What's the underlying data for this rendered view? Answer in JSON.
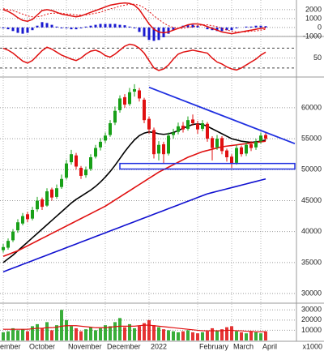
{
  "chart_data": [
    {
      "type": "macd",
      "ylim": [
        -1100,
        2900
      ],
      "yticks": [
        2000,
        1000,
        0,
        -1000
      ],
      "line": {
        "color": "#e01010",
        "values": [
          2000,
          1800,
          1500,
          1100,
          800,
          700,
          900,
          1400,
          1900,
          2000,
          1900,
          1700,
          1500,
          1400,
          1300,
          1200,
          1300,
          1500,
          1700,
          1900,
          2100,
          2300,
          2500,
          2600,
          2700,
          2750,
          2700,
          2500,
          2000,
          1200,
          400,
          -200,
          -500,
          -600,
          -500,
          -300,
          -100,
          100,
          300,
          400,
          400,
          300,
          100,
          -100,
          -300,
          -500,
          -600,
          -700,
          -600,
          -500,
          -400,
          -300,
          -200,
          -100,
          -50
        ]
      },
      "signal": {
        "color": "#e01010",
        "values": [
          2100,
          2000,
          1900,
          1700,
          1500,
          1300,
          1200,
          1200,
          1300,
          1500,
          1600,
          1600,
          1600,
          1500,
          1500,
          1400,
          1400,
          1400,
          1500,
          1600,
          1700,
          1900,
          2100,
          2200,
          2400,
          2500,
          2600,
          2600,
          2500,
          2200,
          1800,
          1300,
          900,
          500,
          200,
          0,
          -100,
          -100,
          0,
          100,
          200,
          300,
          300,
          200,
          100,
          -100,
          -300,
          -400,
          -500,
          -500,
          -500,
          -400,
          -400,
          -300,
          -200
        ]
      },
      "histogram": {
        "color": "#1a1ad0",
        "values": [
          -100,
          -200,
          -400,
          -600,
          -700,
          -600,
          -300,
          200,
          600,
          500,
          300,
          100,
          -100,
          -100,
          -200,
          -200,
          -100,
          100,
          200,
          300,
          400,
          400,
          400,
          400,
          300,
          250,
          100,
          -100,
          -500,
          -1000,
          -1400,
          -1500,
          -1400,
          -1100,
          -700,
          -300,
          0,
          200,
          300,
          300,
          200,
          0,
          -200,
          -300,
          -400,
          -400,
          -300,
          -300,
          -100,
          0,
          100,
          100,
          200,
          200,
          150
        ]
      }
    },
    {
      "type": "line",
      "ylim": [
        15,
        92
      ],
      "yticks": [
        50
      ],
      "levels": [
        70,
        30
      ],
      "color": "#e01010",
      "values": [
        70,
        66,
        60,
        52,
        44,
        40,
        45,
        55,
        65,
        72,
        68,
        62,
        56,
        52,
        48,
        45,
        50,
        58,
        64,
        66,
        62,
        55,
        52,
        58,
        66,
        74,
        78,
        76,
        70,
        60,
        45,
        30,
        25,
        28,
        36,
        48,
        58,
        62,
        64,
        66,
        64,
        62,
        60,
        50,
        42,
        38,
        32,
        28,
        26,
        30,
        36,
        42,
        48,
        56,
        62
      ]
    },
    {
      "type": "candlestick",
      "ylim": [
        28700,
        64700
      ],
      "yticks": [
        30000,
        35000,
        40000,
        45000,
        50000,
        55000,
        60000
      ],
      "up_color": "#18a018",
      "down_color": "#e01010",
      "ohlc": [
        [
          37000,
          38000,
          36600,
          37500
        ],
        [
          37400,
          38900,
          37100,
          38500
        ],
        [
          38600,
          40400,
          38300,
          40000
        ],
        [
          40200,
          42000,
          39800,
          41500
        ],
        [
          41300,
          43000,
          41000,
          42500
        ],
        [
          42800,
          43200,
          41500,
          42000
        ],
        [
          42100,
          44000,
          41800,
          43500
        ],
        [
          43600,
          45600,
          43200,
          45000
        ],
        [
          45200,
          45500,
          43500,
          44000
        ],
        [
          44200,
          47000,
          44000,
          46500
        ],
        [
          46800,
          47100,
          45000,
          45500
        ],
        [
          45600,
          47600,
          45300,
          47000
        ],
        [
          47200,
          49200,
          46900,
          48500
        ],
        [
          48700,
          51600,
          48400,
          51000
        ],
        [
          51200,
          53200,
          50800,
          52500
        ],
        [
          52300,
          52700,
          50000,
          50500
        ],
        [
          50300,
          50600,
          48500,
          49000
        ],
        [
          49100,
          50500,
          48700,
          50000
        ],
        [
          50100,
          52500,
          49800,
          52000
        ],
        [
          52100,
          54000,
          51800,
          53500
        ],
        [
          53600,
          55100,
          53100,
          54500
        ],
        [
          54700,
          56000,
          54300,
          55500
        ],
        [
          55600,
          58000,
          55300,
          57500
        ],
        [
          57600,
          60200,
          57200,
          59500
        ],
        [
          59600,
          62000,
          59200,
          61500
        ],
        [
          61700,
          62200,
          60000,
          60500
        ],
        [
          60600,
          63200,
          60300,
          62500
        ],
        [
          62600,
          63800,
          61800,
          63000
        ],
        [
          62800,
          63200,
          61000,
          61500
        ],
        [
          61300,
          61600,
          57500,
          58000
        ],
        [
          58200,
          58600,
          55800,
          56500
        ],
        [
          56400,
          56800,
          51800,
          52500
        ],
        [
          52600,
          54600,
          51500,
          54000
        ],
        [
          54100,
          54500,
          51000,
          52500
        ],
        [
          52600,
          56000,
          52300,
          55500
        ],
        [
          55600,
          56600,
          55000,
          56000
        ],
        [
          56100,
          57600,
          55700,
          57000
        ],
        [
          57100,
          57700,
          56000,
          56500
        ],
        [
          56600,
          58600,
          56300,
          58000
        ],
        [
          58100,
          58900,
          57100,
          57500
        ],
        [
          57400,
          57900,
          55800,
          56500
        ],
        [
          56600,
          58000,
          56200,
          57500
        ],
        [
          57400,
          57700,
          54500,
          55000
        ],
        [
          55100,
          55400,
          51500,
          53500
        ],
        [
          53600,
          55600,
          53200,
          55000
        ],
        [
          55100,
          55400,
          52500,
          53000
        ],
        [
          53100,
          53400,
          51300,
          52000
        ],
        [
          52100,
          52500,
          50300,
          51000
        ],
        [
          51100,
          54000,
          50800,
          53500
        ],
        [
          53600,
          53900,
          52100,
          52500
        ],
        [
          52600,
          54500,
          52200,
          54000
        ],
        [
          54100,
          54600,
          53000,
          53500
        ],
        [
          53600,
          55000,
          53200,
          54500
        ],
        [
          54600,
          56000,
          54200,
          55500
        ],
        [
          55600,
          56000,
          54700,
          55000
        ]
      ],
      "moving_averages": [
        {
          "color": "#000000",
          "values": [
            35000,
            35600,
            36200,
            36900,
            37600,
            38300,
            39000,
            39700,
            40400,
            41100,
            41800,
            42500,
            43200,
            43900,
            44600,
            45200,
            45700,
            46200,
            46700,
            47300,
            48000,
            48800,
            49700,
            50700,
            51800,
            52900,
            53900,
            54800,
            55500,
            55900,
            56100,
            56000,
            55800,
            55700,
            55800,
            56000,
            56300,
            56700,
            57000,
            57300,
            57400,
            57300,
            57000,
            56600,
            56200,
            55800,
            55400,
            55000,
            54800,
            54600,
            54500,
            54400,
            54500,
            54600,
            54800
          ]
        },
        {
          "color": "#e01010",
          "values": [
            36000,
            36300,
            36600,
            36900,
            37300,
            37700,
            38100,
            38500,
            38900,
            39300,
            39700,
            40100,
            40500,
            40900,
            41300,
            41700,
            42100,
            42500,
            42900,
            43300,
            43700,
            44100,
            44600,
            45100,
            45600,
            46100,
            46600,
            47100,
            47600,
            48100,
            48600,
            49100,
            49600,
            50000,
            50400,
            50800,
            51200,
            51600,
            52000,
            52300,
            52600,
            52900,
            53100,
            53300,
            53500,
            53700,
            53800,
            53900,
            54000,
            54100,
            54200,
            54300,
            54400,
            54500,
            54600
          ]
        },
        {
          "color": "#1010d0",
          "values": [
            33500,
            33800,
            34100,
            34400,
            34700,
            35000,
            35300,
            35600,
            35900,
            36200,
            36500,
            36800,
            37100,
            37400,
            37700,
            38000,
            38300,
            38600,
            38900,
            39200,
            39500,
            39800,
            40100,
            40400,
            40700,
            41000,
            41300,
            41600,
            41900,
            42200,
            42500,
            42800,
            43100,
            43400,
            43700,
            44000,
            44300,
            44600,
            44900,
            45200,
            45500,
            45800,
            46100,
            46300,
            46500,
            46700,
            46900,
            47100,
            47300,
            47500,
            47700,
            47900,
            48100,
            48300,
            48500
          ]
        }
      ],
      "trendline": {
        "color": "#2030e0",
        "x": [
          30,
          60
        ],
        "y": [
          63300,
          54200
        ]
      },
      "support_zone": {
        "color": "#2030e0",
        "from": 24,
        "to": 60,
        "low": 50100,
        "high": 51000
      }
    },
    {
      "type": "bar",
      "ylim": [
        0,
        35000
      ],
      "yticks": [
        10000,
        20000,
        30000
      ],
      "unit_label": "x1000",
      "up_color": "#18a018",
      "down_color": "#e01010",
      "ma_color": "#e01010",
      "categories": [
        "ember",
        null,
        null,
        null,
        null,
        "October",
        null,
        null,
        null,
        null,
        null,
        null,
        null,
        "November",
        null,
        null,
        null,
        null,
        null,
        null,
        null,
        "December",
        null,
        null,
        null,
        null,
        null,
        null,
        null,
        null,
        "2022",
        null,
        null,
        null,
        null,
        null,
        null,
        null,
        null,
        null,
        "February",
        null,
        null,
        null,
        null,
        null,
        null,
        "March",
        null,
        null,
        null,
        null,
        null,
        "April",
        null
      ],
      "values": [
        8000,
        9000,
        12000,
        10000,
        11000,
        9000,
        14000,
        16000,
        12000,
        18000,
        10000,
        15000,
        30000,
        20000,
        14000,
        12000,
        9000,
        11000,
        13000,
        10000,
        12000,
        15000,
        14000,
        18000,
        22000,
        13000,
        16000,
        12000,
        14000,
        17000,
        20000,
        15000,
        13000,
        11000,
        10000,
        9000,
        8000,
        9000,
        10000,
        8000,
        7000,
        8000,
        9000,
        12000,
        10000,
        11000,
        13000,
        14000,
        9000,
        8000,
        7000,
        9000,
        8000,
        7000,
        9000
      ],
      "ma": [
        11000,
        11000,
        11000,
        11000,
        11000,
        11000,
        11500,
        12000,
        12000,
        12500,
        12500,
        13000,
        14000,
        14500,
        14500,
        14500,
        14000,
        13500,
        13000,
        12500,
        12500,
        12500,
        13000,
        13500,
        14000,
        14000,
        14000,
        14000,
        14500,
        15000,
        15000,
        14500,
        14000,
        13500,
        13000,
        12500,
        12000,
        11500,
        11000,
        10500,
        10000,
        9500,
        9500,
        9500,
        9500,
        9500,
        10000,
        10000,
        9500,
        9500,
        9000,
        9000,
        8500,
        8500,
        8500
      ]
    }
  ]
}
